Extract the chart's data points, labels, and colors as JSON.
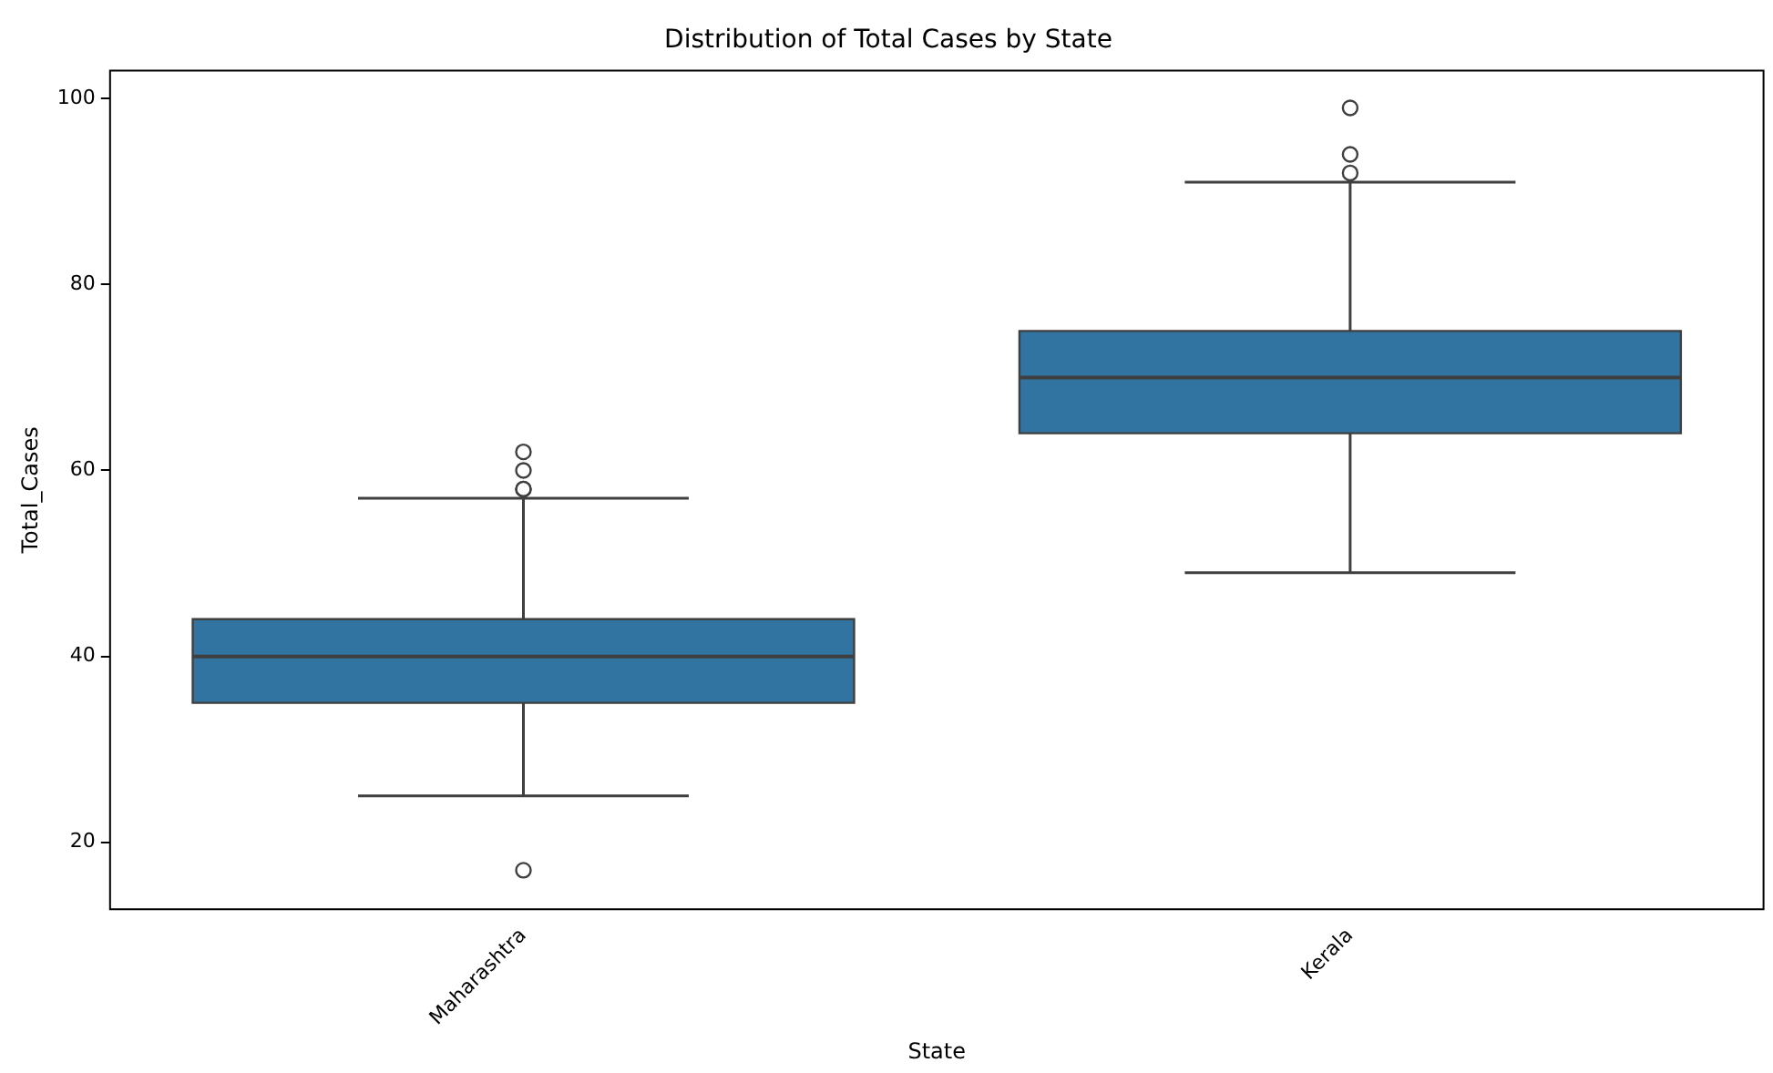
{
  "chart_data": {
    "type": "box",
    "title": "Distribution of Total Cases by State",
    "xlabel": "State",
    "ylabel": "Total_Cases",
    "categories": [
      "Maharashtra",
      "Kerala"
    ],
    "series": [
      {
        "color": "#3274a1",
        "boxes": [
          {
            "low": 25,
            "q1": 35,
            "median": 40,
            "q3": 44,
            "high": 57,
            "outliers": [
              17,
              58,
              58,
              60,
              62
            ]
          },
          {
            "low": 49,
            "q1": 64,
            "median": 70,
            "q3": 75,
            "high": 91,
            "outliers": [
              92,
              94,
              99
            ]
          }
        ]
      }
    ],
    "ylim": [
      12.8,
      103
    ],
    "yticks": [
      20,
      40,
      60,
      80,
      100
    ],
    "grid": false,
    "legend": false
  }
}
